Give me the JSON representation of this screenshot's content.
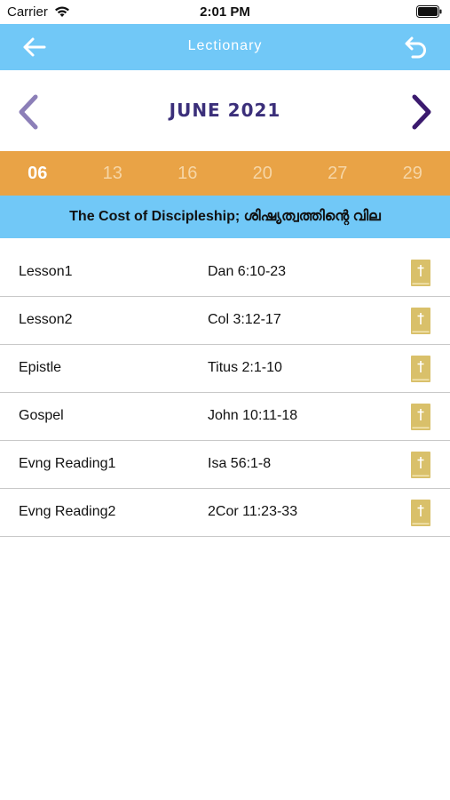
{
  "status_bar": {
    "carrier": "Carrier",
    "time": "2:01 PM"
  },
  "app_bar": {
    "title": "Lectionary",
    "background": "#71c8f7"
  },
  "month": {
    "label": "JUNE 2021",
    "color": "#3b2f7a"
  },
  "dates": [
    {
      "label": "06",
      "selected": true
    },
    {
      "label": "13",
      "selected": false
    },
    {
      "label": "16",
      "selected": false
    },
    {
      "label": "20",
      "selected": false
    },
    {
      "label": "27",
      "selected": false
    },
    {
      "label": "29",
      "selected": false
    }
  ],
  "theme": "The Cost of Discipleship; ശിഷ്യത്വത്തിന്റെ വില",
  "readings": [
    {
      "label": "Lesson1",
      "reference": "Dan 6:10-23",
      "icon": "bible-icon"
    },
    {
      "label": "Lesson2",
      "reference": "Col 3:12-17",
      "icon": "bible-icon"
    },
    {
      "label": "Epistle",
      "reference": "Titus 2:1-10",
      "icon": "bible-icon"
    },
    {
      "label": "Gospel",
      "reference": "John 10:11-18",
      "icon": "bible-icon"
    },
    {
      "label": "Evng Reading1",
      "reference": "Isa 56:1-8",
      "icon": "bible-icon"
    },
    {
      "label": "Evng Reading2",
      "reference": "2Cor 11:23-33",
      "icon": "bible-icon"
    }
  ],
  "colors": {
    "accent_blue": "#71c8f7",
    "date_strip": "#e9a346",
    "bible_gold": "#d9c06a"
  }
}
